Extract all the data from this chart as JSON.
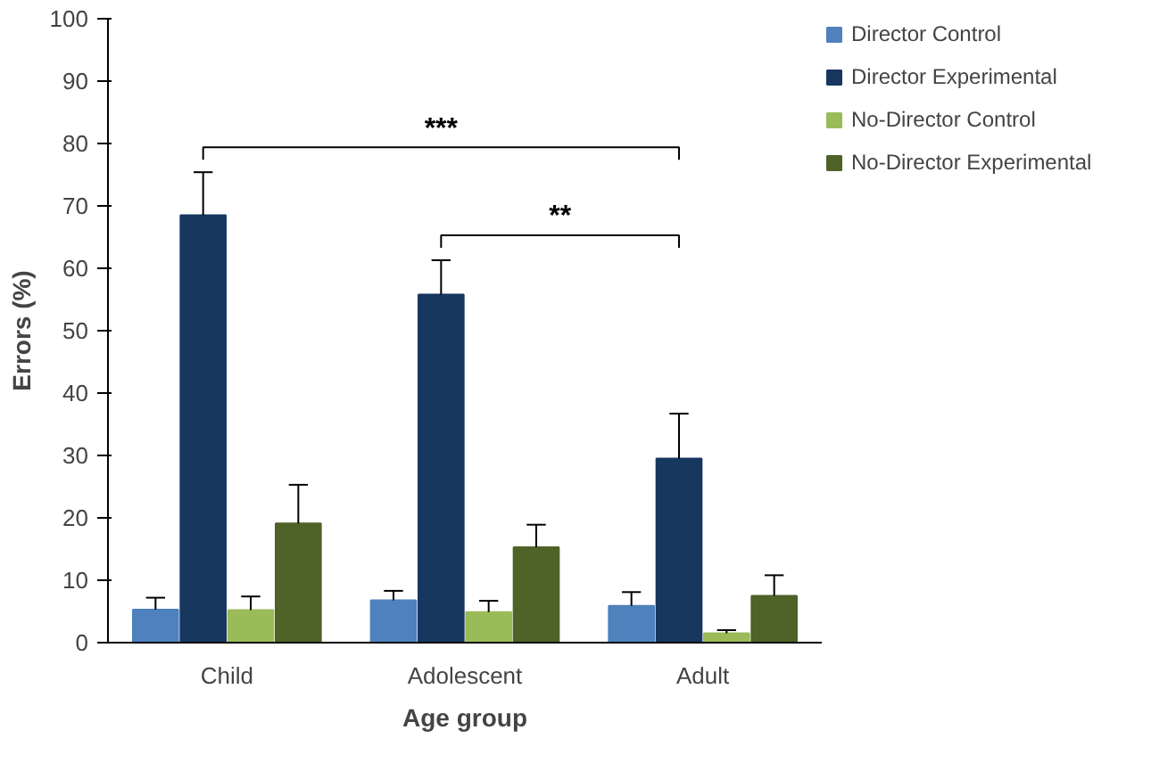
{
  "chart_data": {
    "type": "bar",
    "xlabel": "Age group",
    "ylabel": "Errors (%)",
    "categories": [
      "Child",
      "Adolescent",
      "Adult"
    ],
    "series": [
      {
        "name": "Director Control",
        "color": "#4f81bd",
        "values": [
          5.3,
          6.8,
          5.9
        ],
        "errors": [
          [
            5.3,
            7.2
          ],
          [
            6.8,
            8.3
          ],
          [
            5.9,
            8.1
          ]
        ]
      },
      {
        "name": "Director Experimental",
        "color": "#17375e",
        "values": [
          68.5,
          55.8,
          29.5
        ],
        "errors": [
          [
            68.5,
            75.4
          ],
          [
            55.8,
            61.3
          ],
          [
            29.5,
            36.7
          ]
        ]
      },
      {
        "name": "No-Director Control",
        "color": "#9bbb59",
        "values": [
          5.2,
          4.9,
          1.5
        ],
        "errors": [
          [
            5.2,
            7.4
          ],
          [
            4.9,
            6.7
          ],
          [
            1.5,
            2.0
          ]
        ]
      },
      {
        "name": "No-Director Experimental",
        "color": "#4f6228",
        "values": [
          19.1,
          15.3,
          7.5
        ],
        "errors": [
          [
            19.1,
            25.3
          ],
          [
            15.3,
            18.9
          ],
          [
            7.5,
            10.8
          ]
        ]
      }
    ],
    "ylim": [
      0,
      100
    ],
    "yticks": [
      0,
      10,
      20,
      30,
      40,
      50,
      60,
      70,
      80,
      90,
      100
    ],
    "grid": false,
    "legend": "top right",
    "annotations": [
      "***",
      "**"
    ]
  }
}
